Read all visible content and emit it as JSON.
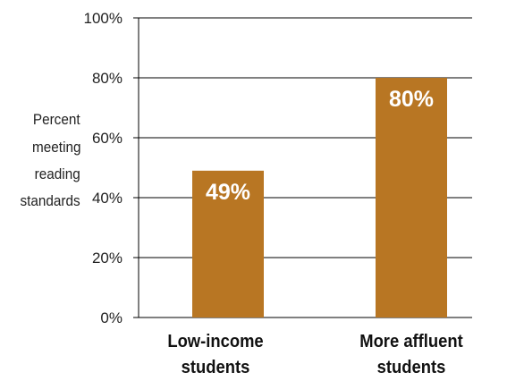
{
  "chart_data": {
    "type": "bar",
    "categories": [
      [
        "Low-income",
        "students"
      ],
      [
        "More affluent",
        "students"
      ]
    ],
    "values": [
      49,
      80
    ],
    "data_labels": [
      "49%",
      "80%"
    ],
    "ylabel": [
      "Percent",
      "meeting",
      "reading",
      "standards"
    ],
    "yticks": [
      0,
      20,
      40,
      60,
      80,
      100
    ],
    "ytick_labels": [
      "0%",
      "20%",
      "40%",
      "60%",
      "80%",
      "100%"
    ],
    "ylim": [
      0,
      100
    ],
    "grid": true,
    "bar_color": "#b87623",
    "data_label_color": "#ffffff"
  }
}
